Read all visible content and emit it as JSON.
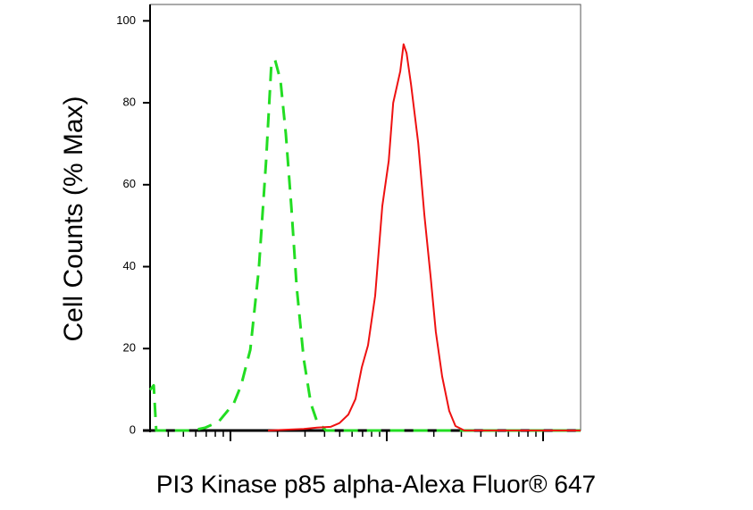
{
  "chart_data": {
    "type": "line",
    "y_label": "Cell Counts (% Max)",
    "x_label": "PI3 Kinase p85 alpha-Alexa Fluor® 647",
    "x_scale": "log",
    "xlim": [
      3.06,
      1738
    ],
    "xticks": [
      10,
      100,
      1000
    ],
    "ylim": [
      0,
      104
    ],
    "yticks": [
      0,
      20,
      40,
      60,
      80,
      100
    ],
    "series": [
      {
        "color": "#22dd22",
        "dashed": true,
        "x": [
          3.06,
          3.23,
          3.35,
          3.58,
          4.66,
          5.68,
          6.92,
          8.43,
          10.5,
          11.7,
          13.4,
          15.2,
          16.9,
          18.3,
          19.3,
          20.9,
          22.6,
          24.5,
          26.5,
          29.4,
          32.7,
          35.8,
          40.8,
          84.3,
          241,
          1738
        ],
        "values": [
          9.9,
          11,
          0,
          0,
          0,
          0,
          0.7,
          2.2,
          6.6,
          11,
          19.7,
          39.5,
          65.8,
          89.9,
          90.4,
          85.5,
          72.4,
          54.8,
          35.1,
          17.5,
          6.6,
          2.2,
          0,
          0,
          0,
          0
        ]
      },
      {
        "color": "#ee1111",
        "dashed": false,
        "x": [
          17.4,
          29.4,
          35.8,
          43.7,
          49.8,
          56.8,
          63.1,
          69.2,
          75.9,
          84.3,
          93.6,
          103,
          110,
          122,
          128,
          134,
          143,
          159,
          174,
          191,
          206,
          226,
          251,
          275,
          314,
          1738
        ],
        "values": [
          0,
          0.4,
          0.7,
          0.9,
          1.8,
          3.9,
          7.7,
          15.4,
          20.8,
          32.9,
          54.8,
          65.8,
          80,
          87.7,
          94.3,
          92.1,
          84.4,
          70.2,
          52.6,
          37.3,
          24.1,
          13.2,
          4.8,
          1.1,
          0,
          0
        ]
      }
    ]
  }
}
